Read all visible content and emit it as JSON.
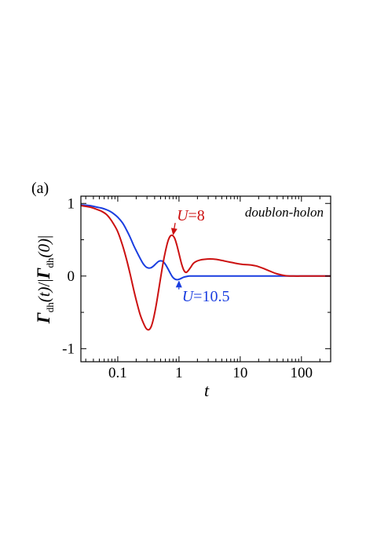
{
  "chart_data": {
    "type": "line",
    "panel_label": "(a)",
    "xlabel": "t",
    "ylabel": "Γdh(t)/|Γdh(0)|",
    "ylabel_parts": {
      "gamma1": "Γ",
      "sub1": "dh",
      "arg1": "(t)",
      "sep": "/|",
      "gamma2": "Γ",
      "sub2": "dh",
      "arg2": "(0)",
      "end": "|"
    },
    "x_scale": "log",
    "xlim": [
      0.025,
      300
    ],
    "ylim": [
      -1.18,
      1.1
    ],
    "x_ticks": [
      {
        "value": 0.1,
        "label": "0.1"
      },
      {
        "value": 1,
        "label": "1"
      },
      {
        "value": 10,
        "label": "10"
      },
      {
        "value": 100,
        "label": "100"
      }
    ],
    "y_ticks": [
      {
        "value": 1,
        "label": "1"
      },
      {
        "value": 0,
        "label": "0"
      },
      {
        "value": -1,
        "label": "-1"
      }
    ],
    "tag": "doublon-holon",
    "series": [
      {
        "name": "U=8",
        "label_var": "U",
        "label_val": "=8",
        "color": "#cc1111",
        "x": [
          0.025,
          0.035,
          0.045,
          0.055,
          0.065,
          0.075,
          0.085,
          0.1,
          0.12,
          0.14,
          0.16,
          0.18,
          0.2,
          0.23,
          0.26,
          0.29,
          0.32,
          0.35,
          0.38,
          0.42,
          0.46,
          0.5,
          0.55,
          0.6,
          0.66,
          0.72,
          0.78,
          0.85,
          0.92,
          1.0,
          1.1,
          1.2,
          1.3,
          1.4,
          1.55,
          1.7,
          1.9,
          2.2,
          2.6,
          3.2,
          4.0,
          5.0,
          6.5,
          8.5,
          11,
          14,
          18,
          23,
          30,
          40,
          55,
          75,
          100,
          150,
          200,
          300
        ],
        "y": [
          0.97,
          0.95,
          0.92,
          0.89,
          0.85,
          0.79,
          0.72,
          0.61,
          0.42,
          0.22,
          0.02,
          -0.17,
          -0.33,
          -0.52,
          -0.64,
          -0.72,
          -0.74,
          -0.7,
          -0.6,
          -0.42,
          -0.22,
          -0.03,
          0.18,
          0.34,
          0.48,
          0.55,
          0.56,
          0.52,
          0.43,
          0.31,
          0.17,
          0.08,
          0.05,
          0.07,
          0.12,
          0.17,
          0.2,
          0.22,
          0.23,
          0.235,
          0.23,
          0.215,
          0.195,
          0.175,
          0.16,
          0.155,
          0.14,
          0.11,
          0.07,
          0.03,
          0.005,
          0.0,
          0.0,
          0.0,
          0.0,
          0.0
        ]
      },
      {
        "name": "U=10.5",
        "label_var": "U",
        "label_val": "=10.5",
        "color": "#1a3ee0",
        "x": [
          0.025,
          0.035,
          0.045,
          0.055,
          0.065,
          0.075,
          0.085,
          0.1,
          0.12,
          0.14,
          0.16,
          0.18,
          0.2,
          0.23,
          0.26,
          0.29,
          0.32,
          0.35,
          0.38,
          0.42,
          0.46,
          0.5,
          0.55,
          0.6,
          0.66,
          0.72,
          0.78,
          0.85,
          0.92,
          1.0,
          1.1,
          1.2,
          1.35,
          1.5,
          1.7,
          2.0,
          2.5,
          3.5,
          5,
          10,
          20,
          50,
          100,
          300
        ],
        "y": [
          0.98,
          0.97,
          0.95,
          0.935,
          0.915,
          0.89,
          0.86,
          0.81,
          0.73,
          0.63,
          0.53,
          0.43,
          0.35,
          0.25,
          0.17,
          0.125,
          0.11,
          0.115,
          0.135,
          0.17,
          0.2,
          0.21,
          0.2,
          0.16,
          0.1,
          0.04,
          -0.01,
          -0.04,
          -0.05,
          -0.045,
          -0.03,
          -0.015,
          -0.005,
          0.0,
          0.0,
          0.0,
          0.0,
          0.0,
          0.0,
          0.0,
          0.0,
          0.0,
          0.0,
          0.0
        ]
      }
    ],
    "annotations": [
      {
        "series": 0,
        "text_x": 0.92,
        "text_y": 0.84,
        "arrow_to_x": 0.8,
        "arrow_to_y": 0.56
      },
      {
        "series": 1,
        "text_x": 1.12,
        "text_y": -0.27,
        "arrow_to_x": 1.0,
        "arrow_to_y": -0.06
      }
    ]
  }
}
